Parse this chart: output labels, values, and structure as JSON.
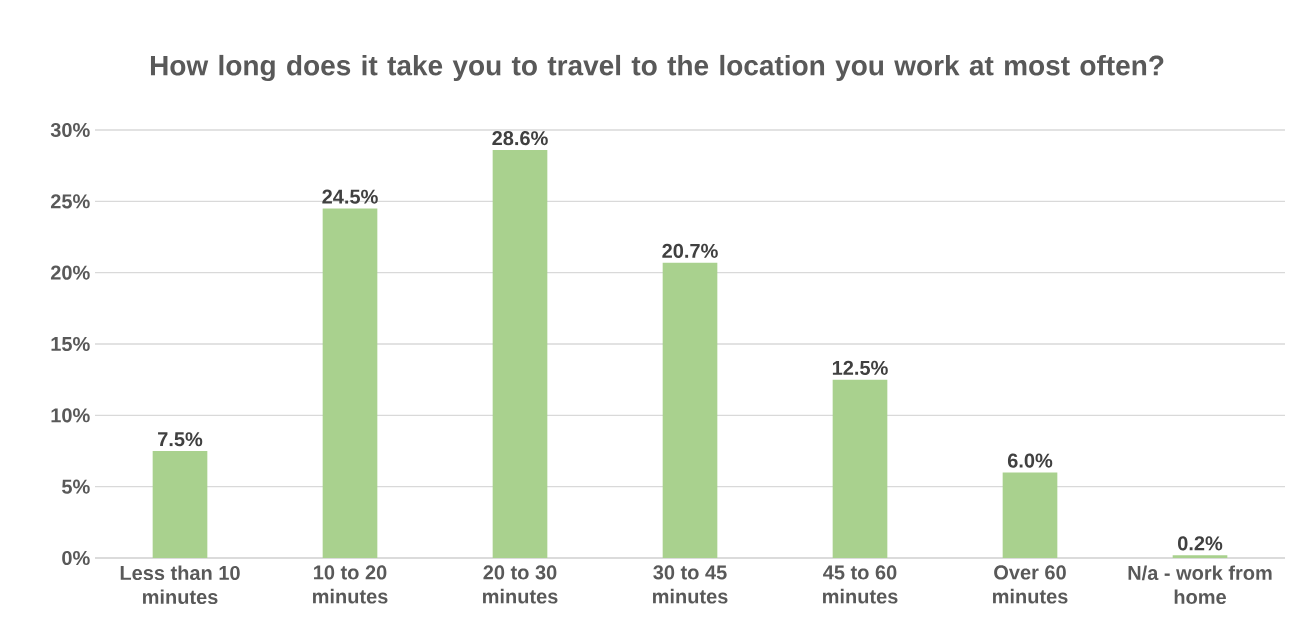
{
  "chart_data": {
    "type": "bar",
    "title": "How long does it take you to travel to the location you work at most often?",
    "categories": [
      "Less than 10 minutes",
      "10 to 20 minutes",
      "20 to 30 minutes",
      "30 to 45 minutes",
      "45 to 60 minutes",
      "Over 60 minutes",
      "N/a - work from home"
    ],
    "values": [
      7.5,
      24.5,
      28.6,
      20.7,
      12.5,
      6.0,
      0.2
    ],
    "value_labels": [
      "7.5%",
      "24.5%",
      "28.6%",
      "20.7%",
      "12.5%",
      "6.0%",
      "0.2%"
    ],
    "color": "#a9d18e",
    "ylim": [
      0,
      30
    ],
    "yticks": [
      {
        "value": 0,
        "label": "0%"
      },
      {
        "value": 5,
        "label": "5%"
      },
      {
        "value": 10,
        "label": "10%"
      },
      {
        "value": 15,
        "label": "15%"
      },
      {
        "value": 20,
        "label": "20%"
      },
      {
        "value": 25,
        "label": "25%"
      },
      {
        "value": 30,
        "label": "30%"
      }
    ],
    "grid": "y"
  }
}
